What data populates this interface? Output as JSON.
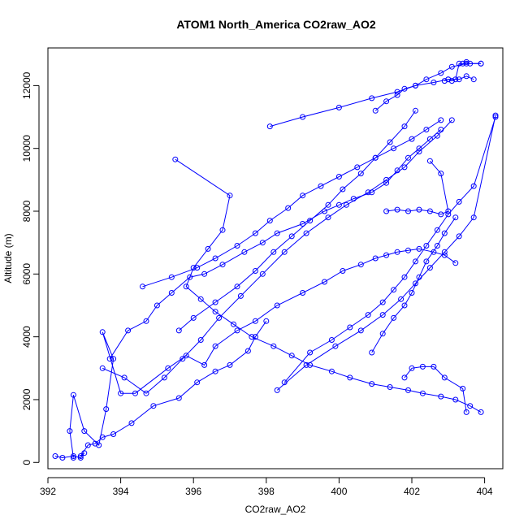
{
  "chart_data": {
    "type": "scatter",
    "title": "ATOM1 North_America CO2raw_AO2",
    "xlabel": "CO2raw_AO2",
    "ylabel": "Altitude (m)",
    "xlim": [
      392,
      404.5
    ],
    "ylim": [
      -200,
      13200
    ],
    "x_ticks": [
      392,
      394,
      396,
      398,
      400,
      402,
      404
    ],
    "y_ticks": [
      0,
      2000,
      4000,
      6000,
      8000,
      10000,
      12000
    ],
    "grid": false,
    "legend": "none",
    "color": "#0000ff",
    "series": [
      {
        "x": [
          392.2,
          392.4,
          392.7,
          392.9,
          393.0,
          392.9,
          393.1,
          393.3,
          393.5,
          393.8,
          394.3,
          394.9,
          395.6,
          396.1,
          396.6,
          397.0,
          397.5,
          397.7,
          398.0
        ],
        "y": [
          200,
          150,
          200,
          150,
          300,
          200,
          550,
          600,
          800,
          900,
          1250,
          1800,
          2050,
          2550,
          2900,
          3100,
          3550,
          4000,
          4500
        ]
      },
      {
        "x": [
          392.7,
          392.6,
          392.7,
          393.0,
          393.4,
          393.6,
          393.8,
          393.5,
          394.0,
          394.4,
          395.3,
          395.8,
          396.3,
          396.6,
          397.2,
          397.7,
          398.3,
          399.0,
          399.6,
          400.1,
          400.6,
          401.0,
          401.3,
          401.6,
          401.9,
          402.2,
          402.6,
          402.9,
          403.2
        ],
        "y": [
          150,
          1000,
          2150,
          1000,
          550,
          1700,
          3300,
          4150,
          2200,
          2200,
          3000,
          3400,
          3100,
          3700,
          4200,
          4500,
          5000,
          5400,
          5750,
          6100,
          6300,
          6500,
          6600,
          6700,
          6750,
          6800,
          6700,
          6600,
          6350
        ]
      },
      {
        "x": [
          393.7,
          394.2,
          394.7,
          395.0,
          395.4,
          395.9,
          396.3,
          396.8,
          397.4,
          397.9,
          398.3,
          399.0,
          399.6,
          400.0,
          400.4,
          400.9,
          401.3,
          401.6,
          401.9,
          402.2,
          402.5,
          402.8
        ],
        "y": [
          3300,
          4200,
          4500,
          5000,
          5400,
          5900,
          6000,
          6300,
          6700,
          7000,
          7300,
          7600,
          8000,
          8200,
          8400,
          8600,
          8900,
          9300,
          9700,
          10000,
          10300,
          10600
        ]
      },
      {
        "x": [
          393.5,
          394.1,
          394.7,
          395.2,
          395.7,
          396.2,
          396.7,
          397.3,
          397.9,
          398.5,
          399.1,
          399.7,
          400.2,
          400.8,
          401.3,
          401.8,
          402.2,
          402.7,
          403.1
        ],
        "y": [
          3000,
          2700,
          2200,
          2700,
          3300,
          3900,
          4600,
          5300,
          6000,
          6700,
          7300,
          7800,
          8200,
          8600,
          9000,
          9400,
          9900,
          10400,
          10900
        ]
      },
      {
        "x": [
          395.5,
          397.0,
          396.8,
          396.4,
          396.0,
          395.8,
          396.2,
          396.6,
          397.1,
          397.6,
          398.2,
          398.7,
          399.2,
          399.8,
          400.3,
          400.9,
          401.4,
          401.9,
          402.3,
          402.8,
          403.2,
          403.6,
          403.9
        ],
        "y": [
          9650,
          8500,
          7400,
          6800,
          6200,
          5600,
          5200,
          4800,
          4400,
          4000,
          3700,
          3400,
          3100,
          2900,
          2700,
          2500,
          2400,
          2300,
          2200,
          2100,
          2000,
          1800,
          1600
        ]
      },
      {
        "x": [
          394.6,
          395.4,
          396.1,
          396.6,
          397.2,
          397.7,
          398.1,
          398.6,
          399.0,
          399.5,
          400.0,
          400.5,
          401.0,
          401.5,
          402.0,
          402.4,
          402.8
        ],
        "y": [
          5600,
          5900,
          6200,
          6500,
          6900,
          7300,
          7700,
          8100,
          8500,
          8800,
          9100,
          9400,
          9700,
          10000,
          10300,
          10600,
          10900
        ]
      },
      {
        "x": [
          395.6,
          396.0,
          396.6,
          397.2,
          397.7,
          398.2,
          398.7,
          399.2,
          399.7,
          400.1,
          400.6,
          401.0,
          401.4,
          401.8,
          402.1
        ],
        "y": [
          4200,
          4600,
          5100,
          5600,
          6100,
          6700,
          7200,
          7700,
          8200,
          8700,
          9200,
          9700,
          10200,
          10700,
          11200
        ]
      },
      {
        "x": [
          398.1,
          399.0,
          400.0,
          400.9,
          401.6,
          402.1,
          402.6,
          403.0,
          403.3,
          403.5,
          403.7
        ],
        "y": [
          10700,
          11000,
          11300,
          11600,
          11800,
          12000,
          12100,
          12200,
          12200,
          12300,
          12200
        ]
      },
      {
        "x": [
          401.0,
          401.3,
          401.6,
          401.8,
          402.1,
          402.4,
          402.8,
          403.1,
          403.5,
          403.9
        ],
        "y": [
          11200,
          11500,
          11700,
          11900,
          12000,
          12200,
          12400,
          12600,
          12700,
          12700
        ]
      },
      {
        "x": [
          398.5,
          399.2,
          399.8,
          400.3,
          400.8,
          401.2,
          401.5,
          401.8,
          402.1,
          402.4,
          402.7,
          403.0,
          403.3,
          403.7,
          404.3
        ],
        "y": [
          2550,
          3500,
          3900,
          4300,
          4700,
          5100,
          5500,
          5900,
          6400,
          6900,
          7400,
          7900,
          8300,
          8800,
          11000
        ]
      },
      {
        "x": [
          398.3,
          399.1,
          399.9,
          400.6,
          401.2,
          401.7,
          402.1,
          402.5,
          402.9,
          403.3,
          403.7,
          404.3
        ],
        "y": [
          2300,
          3100,
          3700,
          4200,
          4700,
          5200,
          5700,
          6200,
          6700,
          7200,
          7800,
          11050
        ]
      },
      {
        "x": [
          400.9,
          401.2,
          401.5,
          401.8,
          402.0,
          402.2,
          402.4,
          402.7,
          402.9,
          403.2
        ],
        "y": [
          3500,
          4100,
          4600,
          5000,
          5400,
          5900,
          6400,
          6900,
          7300,
          7800
        ]
      },
      {
        "x": [
          401.8,
          402.0,
          402.3,
          402.6,
          402.9,
          403.4,
          403.5
        ],
        "y": [
          2700,
          3000,
          3050,
          3050,
          2700,
          2350,
          1600
        ]
      },
      {
        "x": [
          401.3,
          401.6,
          401.9,
          402.2,
          402.5,
          402.8,
          403.0,
          402.8,
          402.5
        ],
        "y": [
          8000,
          8050,
          8000,
          8050,
          8000,
          7900,
          8000,
          9200,
          9600
        ]
      },
      {
        "x": [
          402.9,
          403.0,
          403.1,
          403.2,
          403.3,
          403.4,
          403.5,
          403.6,
          403.9
        ],
        "y": [
          12150,
          12200,
          12150,
          12200,
          12700,
          12700,
          12750,
          12700,
          12700
        ]
      }
    ]
  }
}
